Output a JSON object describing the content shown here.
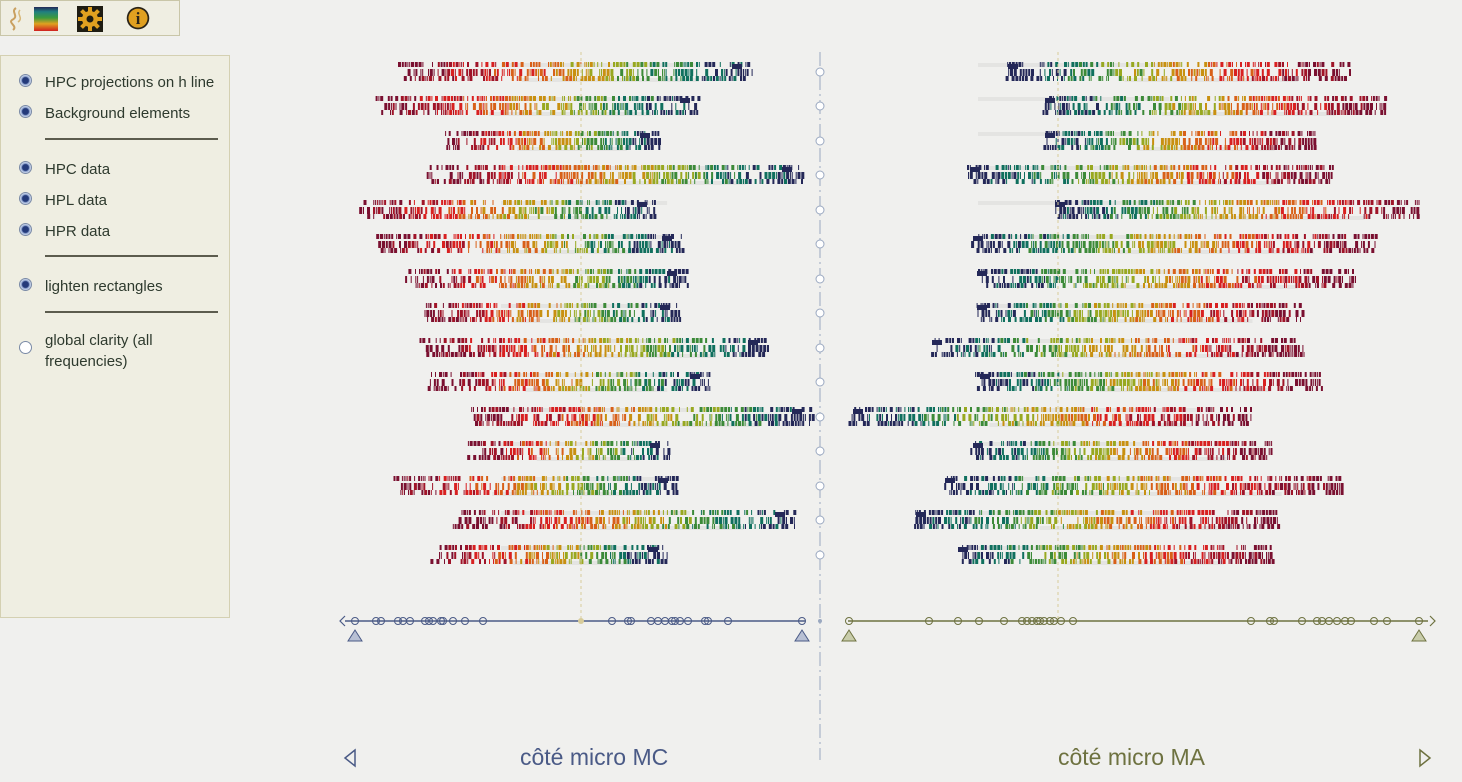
{
  "toolbar": {
    "icons": [
      "spectrum-icon",
      "palette-icon",
      "gear-icon",
      "info-icon"
    ],
    "info_glyph": "i"
  },
  "options": [
    {
      "id": "hpc-projections",
      "label": "HPC projections on h line",
      "checked": true
    },
    {
      "id": "background-elements",
      "label": "Background elements",
      "checked": true
    },
    {
      "id": "hpc-data",
      "label": "HPC data",
      "checked": true
    },
    {
      "id": "hpl-data",
      "label": "HPL data",
      "checked": true
    },
    {
      "id": "hpr-data",
      "label": "HPR data",
      "checked": true
    },
    {
      "id": "lighten-rectangles",
      "label": "lighten rectangles",
      "checked": true
    },
    {
      "id": "global-clarity",
      "label": "global clarity (all frequencies)",
      "checked": false
    }
  ],
  "footer": {
    "left_label": "côté micro MC",
    "right_label": "côté micro MA"
  },
  "colors": {
    "left_axis": "#4a5a86",
    "right_axis": "#6e7240",
    "spectrum": [
      "#7a1030",
      "#a01428",
      "#d82020",
      "#d86018",
      "#c89010",
      "#98a820",
      "#3c8a38",
      "#10705e",
      "#242858"
    ]
  }
}
